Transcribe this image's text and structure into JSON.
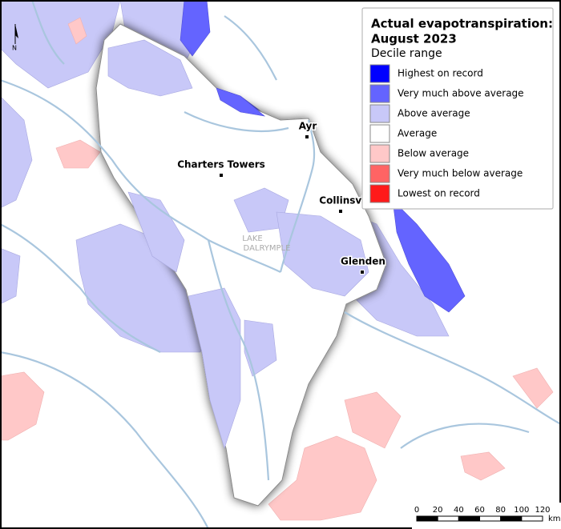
{
  "map": {
    "north_arrow": {
      "label": "N"
    },
    "legend": {
      "title": "Actual evapotranspiration:",
      "period": "August 2023",
      "subtitle": "Decile range",
      "items": [
        {
          "label": "Highest on record",
          "color": "#0000ff"
        },
        {
          "label": "Very much above average",
          "color": "#6464ff"
        },
        {
          "label": "Above average",
          "color": "#c8c8f8"
        },
        {
          "label": "Average",
          "color": "#ffffff"
        },
        {
          "label": "Below average",
          "color": "#ffc8c8"
        },
        {
          "label": "Very much below average",
          "color": "#ff6464"
        },
        {
          "label": "Lowest on record",
          "color": "#ff1a1a"
        }
      ]
    },
    "places": [
      "Ayr",
      "Charters Towers",
      "Collinsville",
      "Glenden"
    ],
    "lake": [
      "LAKE",
      "DALRYMPLE"
    ],
    "scale_bar": {
      "ticks": [
        0,
        20,
        40,
        60,
        80,
        100,
        120
      ],
      "unit": "km"
    }
  }
}
